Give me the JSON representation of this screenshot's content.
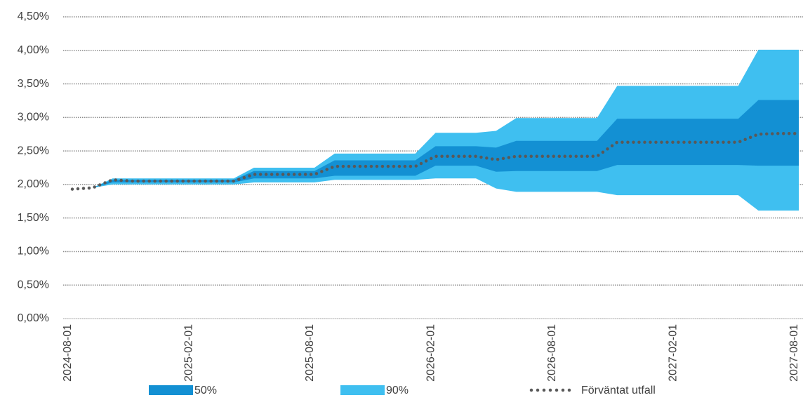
{
  "chart_data": {
    "type": "fan",
    "categories": [
      "2024-08-01",
      null,
      null,
      null,
      null,
      null,
      "2025-02-01",
      null,
      null,
      null,
      null,
      null,
      "2025-08-01",
      null,
      null,
      null,
      null,
      null,
      "2026-02-01",
      null,
      null,
      null,
      null,
      null,
      "2026-08-01",
      null,
      null,
      null,
      null,
      null,
      "2027-02-01",
      null,
      null,
      null,
      null,
      null,
      "2027-08-01"
    ],
    "ylim": [
      0,
      4.5
    ],
    "yticks": [
      {
        "value": 0,
        "label": "0,00%"
      },
      {
        "value": 0.5,
        "label": "0,50%"
      },
      {
        "value": 1,
        "label": "1,00%"
      },
      {
        "value": 1.5,
        "label": "1,50%"
      },
      {
        "value": 2,
        "label": "2,00%"
      },
      {
        "value": 2.5,
        "label": "2,50%"
      },
      {
        "value": 3,
        "label": "3,00%"
      },
      {
        "value": 3.5,
        "label": "3,50%"
      },
      {
        "value": 4,
        "label": "4,00%"
      },
      {
        "value": 4.5,
        "label": "4,50%"
      }
    ],
    "grid": true,
    "legend": "bottom",
    "bands": [
      {
        "name": "90%",
        "color": "#3fbff0",
        "low": [
          1.93,
          1.95,
          2.0,
          2.0,
          2.0,
          2.0,
          2.0,
          2.0,
          2.0,
          2.03,
          2.03,
          2.03,
          2.03,
          2.07,
          2.07,
          2.07,
          2.07,
          2.07,
          2.09,
          2.09,
          2.09,
          1.94,
          1.89,
          1.89,
          1.89,
          1.89,
          1.89,
          1.84,
          1.84,
          1.84,
          1.84,
          1.84,
          1.84,
          1.84,
          1.61,
          1.61,
          1.61
        ],
        "high": [
          1.93,
          1.95,
          2.09,
          2.09,
          2.09,
          2.09,
          2.09,
          2.09,
          2.09,
          2.25,
          2.25,
          2.25,
          2.25,
          2.46,
          2.46,
          2.46,
          2.46,
          2.46,
          2.77,
          2.77,
          2.77,
          2.8,
          2.99,
          2.99,
          2.99,
          2.99,
          2.99,
          3.47,
          3.47,
          3.47,
          3.47,
          3.47,
          3.47,
          3.47,
          4.01,
          4.01,
          4.01
        ]
      },
      {
        "name": "50%",
        "color": "#1390d3",
        "low": [
          1.93,
          1.95,
          2.03,
          2.03,
          2.03,
          2.03,
          2.03,
          2.03,
          2.03,
          2.09,
          2.09,
          2.09,
          2.09,
          2.13,
          2.13,
          2.13,
          2.13,
          2.13,
          2.28,
          2.28,
          2.28,
          2.19,
          2.2,
          2.2,
          2.2,
          2.2,
          2.2,
          2.29,
          2.29,
          2.29,
          2.29,
          2.29,
          2.29,
          2.29,
          2.28,
          2.28,
          2.28
        ],
        "high": [
          1.93,
          1.95,
          2.07,
          2.07,
          2.07,
          2.07,
          2.07,
          2.07,
          2.07,
          2.2,
          2.2,
          2.2,
          2.2,
          2.36,
          2.36,
          2.36,
          2.36,
          2.36,
          2.57,
          2.57,
          2.57,
          2.55,
          2.65,
          2.65,
          2.65,
          2.65,
          2.65,
          2.98,
          2.98,
          2.98,
          2.98,
          2.98,
          2.98,
          2.98,
          3.26,
          3.26,
          3.26
        ]
      }
    ],
    "series": [
      {
        "name": "Förväntat utfall",
        "color": "#595959",
        "values": [
          1.93,
          1.95,
          2.07,
          2.05,
          2.05,
          2.05,
          2.05,
          2.05,
          2.05,
          2.15,
          2.15,
          2.15,
          2.15,
          2.27,
          2.27,
          2.27,
          2.27,
          2.27,
          2.42,
          2.42,
          2.42,
          2.37,
          2.42,
          2.42,
          2.42,
          2.42,
          2.42,
          2.63,
          2.63,
          2.63,
          2.63,
          2.63,
          2.63,
          2.63,
          2.75,
          2.76,
          2.76
        ]
      }
    ]
  }
}
